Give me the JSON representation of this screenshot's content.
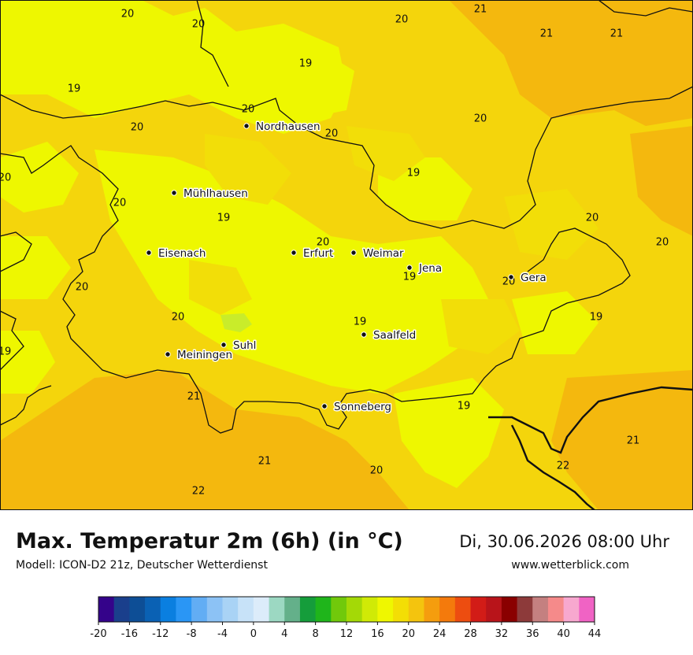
{
  "map": {
    "cities": [
      {
        "name": "Nordhausen"
      },
      {
        "name": "Mühlhausen"
      },
      {
        "name": "Eisenach"
      },
      {
        "name": "Erfurt"
      },
      {
        "name": "Weimar"
      },
      {
        "name": "Jena"
      },
      {
        "name": "Gera"
      },
      {
        "name": "Suhl"
      },
      {
        "name": "Meiningen"
      },
      {
        "name": "Saalfeld"
      },
      {
        "name": "Sonneberg"
      }
    ],
    "values": [
      "20",
      "20",
      "20",
      "21",
      "21",
      "21",
      "19",
      "19",
      "20",
      "20",
      "20",
      "20",
      "20",
      "19",
      "20",
      "19",
      "20",
      "20",
      "20",
      "19",
      "20",
      "20",
      "20",
      "19",
      "19",
      "19",
      "21",
      "19",
      "21",
      "20",
      "21",
      "22",
      "22"
    ],
    "colors": {
      "c18": "#eef700",
      "c19": "#f2de08",
      "c20": "#f4b80e",
      "background": "#f4d50c",
      "border": "#111111"
    }
  },
  "header": {
    "title": "Max. Temperatur 2m (6h) (in °C)",
    "datetime": "Di, 30.06.2026 08:00 Uhr",
    "model": "Modell: ICON-D2 21z, Deutscher Wetterdienst",
    "site": "www.wetterblick.com"
  },
  "legend": {
    "ticks": [
      "-20",
      "-16",
      "-12",
      "-8",
      "-4",
      "0",
      "4",
      "8",
      "12",
      "16",
      "20",
      "24",
      "28",
      "32",
      "36",
      "40",
      "44"
    ],
    "colors": [
      "#34038a",
      "#1a3f8c",
      "#0d4e96",
      "#0a61b4",
      "#0a7fe0",
      "#2a96f5",
      "#62adf4",
      "#8cc2f5",
      "#a9d3f5",
      "#c7e2f8",
      "#dcecfa",
      "#9cd8c2",
      "#64b08a",
      "#159d3b",
      "#1fb51b",
      "#71c90b",
      "#a4d906",
      "#d0ea06",
      "#eff700",
      "#f3de05",
      "#f4c40e",
      "#f59d0e",
      "#f47a0c",
      "#ed4d10",
      "#d21c17",
      "#b8141a",
      "#8a0000",
      "#8d3a3a",
      "#c48080",
      "#f58a8a",
      "#f7a8cf",
      "#f063c4"
    ]
  }
}
